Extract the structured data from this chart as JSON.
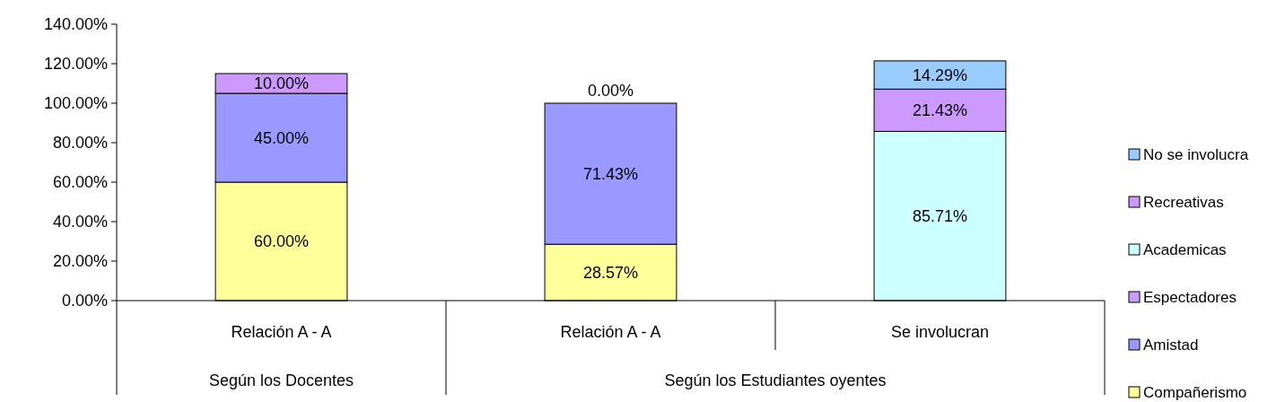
{
  "chart_data": {
    "type": "bar",
    "stacked": true,
    "categories": [
      "Relación A - A",
      "Relación A - A",
      "Se involucran"
    ],
    "annotations": [
      "Según los Docentes",
      "Según los Estudiantes oyentes"
    ],
    "ylim": [
      0,
      140
    ],
    "yticks": [
      {
        "value": 0,
        "label": "0.00%"
      },
      {
        "value": 20,
        "label": "20.00%"
      },
      {
        "value": 40,
        "label": "40.00%"
      },
      {
        "value": 60,
        "label": "60.00%"
      },
      {
        "value": 80,
        "label": "80.00%"
      },
      {
        "value": 100,
        "label": "100.00%"
      },
      {
        "value": 120,
        "label": "120.00%"
      },
      {
        "value": 140,
        "label": "140.00%"
      }
    ],
    "legend": "right",
    "grid": false,
    "series": [
      {
        "name": "Compañerismo",
        "color": "#ffff99",
        "values": [
          60,
          28.57,
          null
        ],
        "value_labels": [
          "60.00%",
          "28.57%",
          null
        ]
      },
      {
        "name": "Amistad",
        "color": "#9999ff",
        "values": [
          45,
          71.43,
          null
        ],
        "value_labels": [
          "45.00%",
          "71.43%",
          null
        ]
      },
      {
        "name": "Espectadores",
        "color": "#cc99ff",
        "values": [
          10,
          0,
          null
        ],
        "value_labels": [
          "10.00%",
          "0.00%",
          null
        ]
      },
      {
        "name": "Academicas",
        "color": "#ccffff",
        "values": [
          null,
          null,
          85.71
        ],
        "value_labels": [
          null,
          null,
          "85.71%"
        ]
      },
      {
        "name": "Recreativas",
        "color": "#cc99ff",
        "values": [
          null,
          null,
          21.43
        ],
        "value_labels": [
          null,
          null,
          "21.43%"
        ]
      },
      {
        "name": "No se involucra",
        "color": "#99ccff",
        "values": [
          null,
          null,
          14.29
        ],
        "value_labels": [
          null,
          null,
          "14.29%"
        ]
      }
    ]
  }
}
